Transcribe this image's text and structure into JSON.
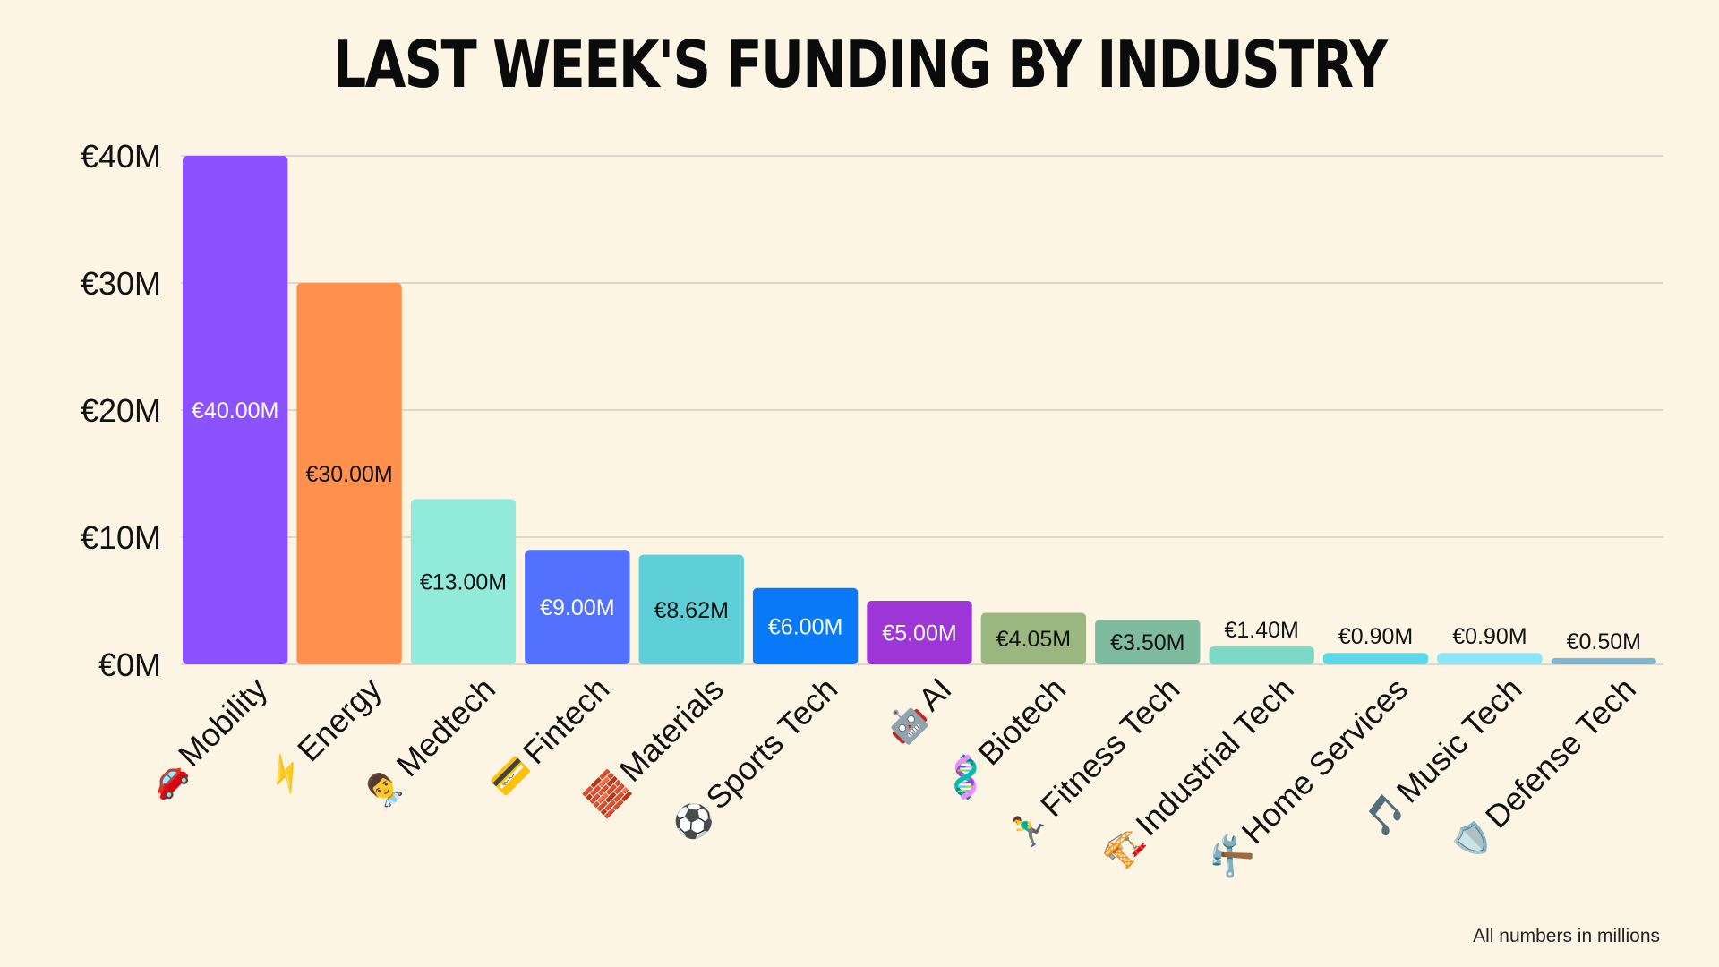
{
  "chart_data": {
    "type": "bar",
    "title": "LAST WEEK'S FUNDING BY INDUSTRY",
    "xlabel": "",
    "ylabel": "",
    "ylim": [
      0,
      40
    ],
    "yticks": [
      "€0M",
      "€10M",
      "€20M",
      "€30M",
      "€40M"
    ],
    "ytick_values": [
      0,
      10,
      20,
      30,
      40
    ],
    "grid": true,
    "categories": [
      "Mobility",
      "Energy",
      "Medtech",
      "Fintech",
      "Materials",
      "Sports Tech",
      "AI",
      "Biotech",
      "Fitness Tech",
      "Industrial Tech",
      "Home Services",
      "Music Tech",
      "Defense Tech"
    ],
    "category_emojis": [
      "🚗",
      "⚡",
      "👨‍⚕️",
      "💳",
      "🧱",
      "⚽",
      "🤖",
      "🧬",
      "🏃‍♂️",
      "🏗️",
      "🛠️",
      "🎵",
      "🛡️"
    ],
    "values": [
      40.0,
      30.0,
      13.0,
      9.0,
      8.62,
      6.0,
      5.0,
      4.05,
      3.5,
      1.4,
      0.9,
      0.9,
      0.5
    ],
    "value_labels": [
      "€40.00M",
      "€30.00M",
      "€13.00M",
      "€9.00M",
      "€8.62M",
      "€6.00M",
      "€5.00M",
      "€4.05M",
      "€3.50M",
      "€1.40M",
      "€0.90M",
      "€0.90M",
      "€0.50M"
    ],
    "bar_colors": [
      "#8c52ff",
      "#ff914d",
      "#92eadb",
      "#5271ff",
      "#5ecfd6",
      "#0879f8",
      "#9e36d7",
      "#9ab77f",
      "#7fbb9f",
      "#7dd9c6",
      "#5ad9e8",
      "#8ae6f5",
      "#7fb7d2"
    ],
    "label_colors": [
      "#ffffff",
      "#111111",
      "#111111",
      "#ffffff",
      "#111111",
      "#ffffff",
      "#ffffff",
      "#111111",
      "#111111",
      "#111111",
      "#111111",
      "#111111",
      "#111111"
    ],
    "footnote": "All numbers in millions"
  }
}
